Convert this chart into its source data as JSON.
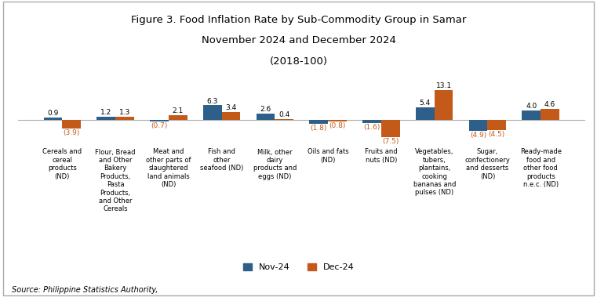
{
  "title_line1": "Figure 3. Food Inflation Rate by Sub-Commodity Group in Samar",
  "title_line2": "November 2024 and December 2024",
  "title_line3": "(2018-100)",
  "categories": [
    "Cereals and\ncereal\nproducts\n(ND)",
    "Flour, Bread\nand Other\nBakery\nProducts,\nPasta\nProducts,\nand Other\nCereals",
    "Meat and\nother parts of\nslaughtered\nland animals\n(ND)",
    "Fish and\nother\nseafood (ND)",
    "Milk, other\ndairy\nproducts and\neggs (ND)",
    "Oils and fats\n(ND)",
    "Fruits and\nnuts (ND)",
    "Vegetables,\ntubers,\nplantains,\ncooking\nbananas and\npulses (ND)",
    "Sugar,\nconfectionery\nand desserts\n(ND)",
    "Ready-made\nfood and\nother food\nproducts\nn.e.c. (ND)"
  ],
  "nov24": [
    0.9,
    1.2,
    -0.7,
    6.3,
    2.6,
    -1.8,
    -1.6,
    5.4,
    -4.9,
    4.0
  ],
  "dec24": [
    -3.9,
    1.3,
    2.1,
    3.4,
    0.4,
    -0.8,
    -7.5,
    13.1,
    -4.5,
    4.6
  ],
  "color_nov": "#2E5F8A",
  "color_dec": "#C45A1A",
  "color_neg_label": "#C45A1A",
  "color_pos_label": "#000000",
  "source": "Source: Philippine Statistics Authority,",
  "legend_nov": "Nov-24",
  "legend_dec": "Dec-24",
  "ylim_min": -10,
  "ylim_max": 16
}
